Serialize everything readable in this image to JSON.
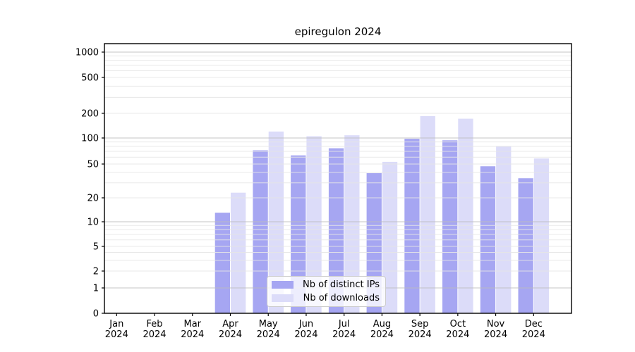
{
  "chart_data": {
    "type": "bar",
    "title": "epiregulon 2024",
    "categories": [
      "Jan",
      "Feb",
      "Mar",
      "Apr",
      "May",
      "Jun",
      "Jul",
      "Aug",
      "Sep",
      "Oct",
      "Nov",
      "Dec"
    ],
    "tick_year": "2024",
    "series": [
      {
        "name": "Nb of distinct IPs",
        "color": "#a6a6f2",
        "values": [
          0,
          0,
          0,
          13,
          72,
          63,
          76,
          39,
          98,
          94,
          47,
          34
        ]
      },
      {
        "name": "Nb of downloads",
        "color": "#dcdcf9",
        "values": [
          0,
          0,
          0,
          23,
          120,
          105,
          108,
          53,
          185,
          172,
          80,
          58
        ]
      }
    ],
    "yscale": "symlog",
    "ytick_labels": [
      "0",
      "1",
      "2",
      "5",
      "10",
      "20",
      "50",
      "100",
      "200",
      "500",
      "1000"
    ],
    "ytick_values": [
      0,
      1,
      2,
      5,
      10,
      20,
      50,
      100,
      200,
      500,
      1000
    ],
    "ylim": [
      0,
      1250
    ],
    "grid": true,
    "legend_position": "lower center",
    "colors": {
      "grid_major": "#bcbcbc",
      "grid_minor": "#e6e6e6",
      "axis": "#000000",
      "background": "#ffffff"
    }
  }
}
